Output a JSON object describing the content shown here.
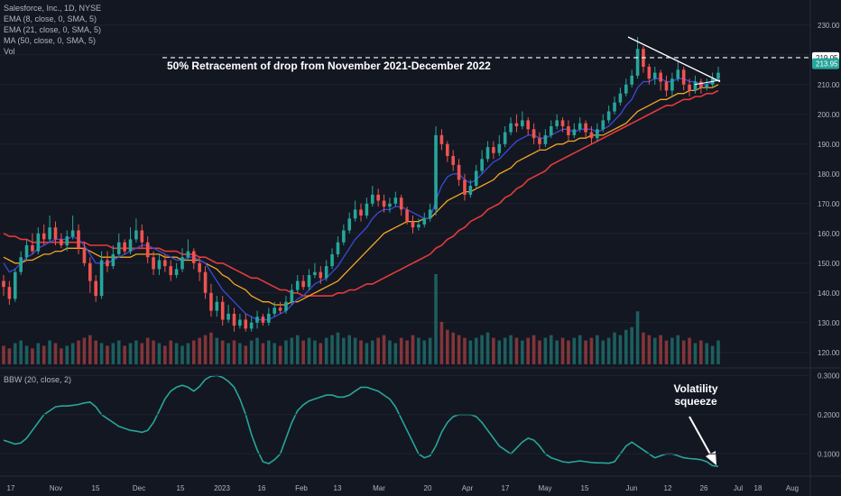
{
  "legend": {
    "symbol": "Salesforce, Inc., 1D, NYSE",
    "ema8": "EMA (8, close, 0, SMA, 5)",
    "ema21": "EMA (21, close, 0, SMA, 5)",
    "ma50": "MA (50, close, 0, SMA, 5)",
    "vol": "Vol",
    "bbw": "BBW (20, close, 2)"
  },
  "annotations": {
    "retracement": "50% Retracement of drop from November 2021-December 2022",
    "squeeze_line1": "Volatility",
    "squeeze_line2": "squeeze"
  },
  "colors": {
    "background": "#131722",
    "up": "#26a69a",
    "down": "#ef5350",
    "ema8": "#3b4bd8",
    "ema21": "#f5a623",
    "ma50": "#e53b3b",
    "bbw": "#26a69a",
    "grid": "#1e222d",
    "text": "#b2b5be"
  },
  "chart_data": {
    "type": "candlestick",
    "x_ticks": [
      "17",
      "Nov",
      "15",
      "Dec",
      "15",
      "2023",
      "16",
      "Feb",
      "13",
      "Mar",
      "20",
      "Apr",
      "17",
      "May",
      "15",
      "Jun",
      "12",
      "26",
      "Jul",
      "18",
      "Aug"
    ],
    "price_ticks": [
      120,
      130,
      140,
      150,
      160,
      170,
      180,
      190,
      200,
      210,
      220,
      230
    ],
    "price_range": [
      116,
      236
    ],
    "bbw_ticks": [
      "0.1000",
      "0.2000",
      "0.3000"
    ],
    "bbw_range": [
      0.05,
      0.31
    ],
    "current_price_label": "213.95",
    "retracement_level_label": "219.05",
    "retracement_level": 219.05,
    "candles": [
      [
        144,
        142,
        146,
        139
      ],
      [
        142,
        138,
        144,
        136
      ],
      [
        138,
        147,
        148,
        137
      ],
      [
        147,
        152,
        154,
        146
      ],
      [
        152,
        156,
        158,
        151
      ],
      [
        156,
        154,
        160,
        153
      ],
      [
        154,
        160,
        162,
        153
      ],
      [
        160,
        158,
        163,
        156
      ],
      [
        158,
        162,
        166,
        157
      ],
      [
        162,
        158,
        164,
        156
      ],
      [
        158,
        156,
        160,
        155
      ],
      [
        156,
        159,
        161,
        154
      ],
      [
        159,
        161,
        166,
        158
      ],
      [
        161,
        155,
        163,
        153
      ],
      [
        155,
        150,
        157,
        149
      ],
      [
        150,
        144,
        152,
        140
      ],
      [
        144,
        139,
        146,
        137
      ],
      [
        139,
        151,
        154,
        138
      ],
      [
        151,
        149,
        154,
        147
      ],
      [
        149,
        153,
        156,
        148
      ],
      [
        153,
        157,
        160,
        152
      ],
      [
        157,
        154,
        158,
        153
      ],
      [
        154,
        158,
        162,
        153
      ],
      [
        158,
        161,
        165,
        157
      ],
      [
        161,
        157,
        163,
        155
      ],
      [
        157,
        152,
        159,
        150
      ],
      [
        152,
        148,
        154,
        146
      ],
      [
        148,
        151,
        153,
        146
      ],
      [
        151,
        149,
        153,
        147
      ],
      [
        149,
        146,
        151,
        144
      ],
      [
        146,
        148,
        150,
        145
      ],
      [
        148,
        152,
        155,
        147
      ],
      [
        152,
        154,
        158,
        151
      ],
      [
        154,
        150,
        155,
        148
      ],
      [
        150,
        147,
        152,
        144
      ],
      [
        147,
        140,
        149,
        138
      ],
      [
        140,
        134,
        143,
        132
      ],
      [
        134,
        137,
        139,
        132
      ],
      [
        137,
        131,
        139,
        129
      ],
      [
        131,
        133,
        136,
        130
      ],
      [
        133,
        129,
        135,
        127
      ],
      [
        129,
        131,
        133,
        128
      ],
      [
        131,
        128,
        133,
        127
      ],
      [
        128,
        130,
        132,
        127
      ],
      [
        130,
        132,
        134,
        128
      ],
      [
        132,
        130,
        133,
        129
      ],
      [
        130,
        133,
        135,
        129
      ],
      [
        133,
        135,
        137,
        132
      ],
      [
        135,
        134,
        137,
        133
      ],
      [
        134,
        137,
        139,
        133
      ],
      [
        137,
        141,
        143,
        136
      ],
      [
        141,
        144,
        146,
        140
      ],
      [
        144,
        142,
        146,
        141
      ],
      [
        142,
        146,
        148,
        141
      ],
      [
        146,
        147,
        150,
        145
      ],
      [
        147,
        145,
        149,
        143
      ],
      [
        145,
        149,
        151,
        144
      ],
      [
        149,
        153,
        155,
        148
      ],
      [
        153,
        157,
        159,
        152
      ],
      [
        157,
        161,
        163,
        156
      ],
      [
        161,
        165,
        167,
        160
      ],
      [
        165,
        168,
        171,
        164
      ],
      [
        168,
        166,
        170,
        164
      ],
      [
        166,
        170,
        172,
        165
      ],
      [
        170,
        173,
        176,
        169
      ],
      [
        173,
        171,
        175,
        169
      ],
      [
        171,
        169,
        173,
        167
      ],
      [
        169,
        170,
        172,
        167
      ],
      [
        170,
        172,
        174,
        169
      ],
      [
        172,
        168,
        173,
        166
      ],
      [
        168,
        164,
        169,
        163
      ],
      [
        164,
        162,
        166,
        160
      ],
      [
        162,
        163,
        165,
        161
      ],
      [
        163,
        165,
        167,
        162
      ],
      [
        165,
        168,
        170,
        164
      ],
      [
        168,
        193,
        196,
        166
      ],
      [
        193,
        190,
        195,
        188
      ],
      [
        190,
        186,
        191,
        184
      ],
      [
        186,
        183,
        188,
        181
      ],
      [
        183,
        178,
        185,
        176
      ],
      [
        178,
        173,
        180,
        171
      ],
      [
        173,
        176,
        178,
        172
      ],
      [
        176,
        181,
        183,
        175
      ],
      [
        181,
        185,
        188,
        180
      ],
      [
        185,
        189,
        191,
        184
      ],
      [
        189,
        187,
        191,
        185
      ],
      [
        187,
        190,
        193,
        186
      ],
      [
        190,
        194,
        196,
        189
      ],
      [
        194,
        197,
        199,
        193
      ],
      [
        197,
        196,
        200,
        194
      ],
      [
        196,
        198,
        201,
        195
      ],
      [
        198,
        195,
        199,
        193
      ],
      [
        195,
        192,
        197,
        190
      ],
      [
        192,
        190,
        194,
        188
      ],
      [
        190,
        193,
        195,
        189
      ],
      [
        193,
        196,
        198,
        192
      ],
      [
        196,
        198,
        200,
        195
      ],
      [
        198,
        196,
        199,
        194
      ],
      [
        196,
        193,
        198,
        191
      ],
      [
        193,
        195,
        197,
        192
      ],
      [
        195,
        197,
        199,
        194
      ],
      [
        197,
        194,
        198,
        192
      ],
      [
        194,
        192,
        196,
        190
      ],
      [
        192,
        195,
        197,
        191
      ],
      [
        195,
        198,
        200,
        194
      ],
      [
        198,
        201,
        203,
        197
      ],
      [
        201,
        204,
        206,
        200
      ],
      [
        204,
        207,
        209,
        203
      ],
      [
        207,
        210,
        212,
        206
      ],
      [
        210,
        213,
        215,
        209
      ],
      [
        213,
        222,
        226,
        212
      ],
      [
        222,
        216,
        223,
        214
      ],
      [
        216,
        212,
        217,
        210
      ],
      [
        212,
        214,
        216,
        210
      ],
      [
        214,
        211,
        215,
        208
      ],
      [
        211,
        208,
        213,
        206
      ],
      [
        208,
        212,
        214,
        206
      ],
      [
        212,
        215,
        218,
        211
      ],
      [
        215,
        210,
        216,
        208
      ],
      [
        210,
        208,
        212,
        206
      ],
      [
        208,
        211,
        213,
        207
      ],
      [
        211,
        209,
        212,
        207
      ],
      [
        209,
        210,
        212,
        208
      ],
      [
        210,
        212,
        214,
        209
      ],
      [
        212,
        214,
        216,
        211
      ]
    ],
    "volume": [
      7,
      6,
      8,
      9,
      7,
      6,
      8,
      7,
      9,
      8,
      6,
      7,
      8,
      9,
      10,
      11,
      9,
      8,
      7,
      8,
      9,
      7,
      8,
      9,
      8,
      10,
      9,
      8,
      7,
      9,
      8,
      7,
      8,
      9,
      10,
      11,
      12,
      10,
      9,
      8,
      9,
      8,
      7,
      9,
      10,
      8,
      9,
      8,
      7,
      9,
      10,
      11,
      9,
      10,
      9,
      8,
      10,
      11,
      12,
      10,
      11,
      10,
      9,
      8,
      9,
      10,
      11,
      9,
      8,
      10,
      9,
      11,
      10,
      9,
      10,
      34,
      16,
      13,
      12,
      11,
      10,
      9,
      10,
      11,
      12,
      10,
      9,
      10,
      11,
      10,
      9,
      10,
      11,
      9,
      10,
      11,
      9,
      10,
      9,
      10,
      11,
      9,
      10,
      11,
      9,
      10,
      12,
      11,
      13,
      14,
      20,
      12,
      11,
      10,
      11,
      9,
      10,
      11,
      9,
      10,
      8,
      9,
      8,
      7,
      9
    ],
    "ema8": [
      150,
      147,
      148,
      150,
      152,
      153,
      155,
      156,
      157,
      158,
      158,
      158,
      159,
      158,
      156,
      153,
      150,
      150,
      150,
      151,
      152,
      153,
      154,
      155,
      156,
      156,
      155,
      154,
      153,
      152,
      151,
      151,
      152,
      152,
      151,
      150,
      147,
      144,
      141,
      139,
      137,
      135,
      133,
      132,
      131,
      131,
      131,
      132,
      133,
      134,
      136,
      138,
      139,
      141,
      143,
      144,
      145,
      147,
      149,
      152,
      155,
      158,
      160,
      162,
      165,
      167,
      168,
      168,
      169,
      169,
      168,
      167,
      166,
      165,
      165,
      171,
      176,
      179,
      180,
      180,
      178,
      177,
      178,
      180,
      182,
      184,
      185,
      187,
      189,
      191,
      192,
      193,
      193,
      192,
      192,
      193,
      194,
      195,
      195,
      194,
      195,
      195,
      195,
      194,
      195,
      196,
      198,
      200,
      203,
      205,
      209,
      211,
      211,
      212,
      212,
      211,
      211,
      212,
      212,
      211,
      211,
      210,
      210,
      211,
      212
    ],
    "ema21": [
      152,
      151,
      150,
      150,
      151,
      151,
      152,
      153,
      153,
      154,
      154,
      155,
      155,
      155,
      155,
      154,
      153,
      152,
      152,
      152,
      152,
      152,
      152,
      153,
      153,
      153,
      153,
      153,
      152,
      152,
      152,
      151,
      151,
      151,
      151,
      150,
      149,
      148,
      146,
      145,
      143,
      142,
      141,
      139,
      138,
      137,
      137,
      136,
      136,
      136,
      137,
      137,
      138,
      139,
      140,
      141,
      142,
      143,
      144,
      146,
      148,
      150,
      152,
      154,
      156,
      158,
      160,
      161,
      162,
      163,
      164,
      164,
      164,
      165,
      165,
      167,
      169,
      171,
      172,
      173,
      174,
      174,
      175,
      176,
      177,
      178,
      180,
      181,
      182,
      184,
      185,
      186,
      187,
      188,
      188,
      189,
      190,
      190,
      191,
      191,
      192,
      192,
      193,
      193,
      193,
      194,
      195,
      196,
      197,
      199,
      201,
      202,
      203,
      204,
      205,
      205,
      206,
      207,
      207,
      208,
      208,
      209,
      209,
      209,
      210
    ],
    "ma50": [
      160,
      159,
      159,
      158,
      158,
      157,
      157,
      157,
      157,
      157,
      157,
      157,
      157,
      157,
      157,
      156,
      156,
      156,
      156,
      155,
      155,
      155,
      155,
      155,
      155,
      155,
      155,
      155,
      154,
      154,
      154,
      153,
      153,
      153,
      152,
      152,
      151,
      150,
      150,
      149,
      148,
      147,
      146,
      145,
      145,
      144,
      143,
      142,
      141,
      141,
      140,
      140,
      139,
      139,
      139,
      139,
      139,
      139,
      140,
      140,
      141,
      141,
      142,
      143,
      143,
      144,
      145,
      146,
      147,
      148,
      149,
      150,
      151,
      152,
      153,
      155,
      156,
      158,
      159,
      161,
      162,
      164,
      165,
      166,
      168,
      169,
      170,
      172,
      173,
      175,
      176,
      178,
      179,
      180,
      181,
      183,
      184,
      185,
      186,
      187,
      188,
      189,
      190,
      191,
      192,
      193,
      194,
      195,
      196,
      197,
      198,
      199,
      200,
      201,
      202,
      203,
      203,
      204,
      205,
      205,
      206,
      206,
      207,
      207,
      208
    ],
    "bbw": [
      0.135,
      0.13,
      0.125,
      0.128,
      0.14,
      0.16,
      0.18,
      0.2,
      0.21,
      0.22,
      0.222,
      0.222,
      0.224,
      0.226,
      0.23,
      0.232,
      0.22,
      0.2,
      0.19,
      0.18,
      0.17,
      0.165,
      0.16,
      0.158,
      0.155,
      0.16,
      0.18,
      0.21,
      0.24,
      0.26,
      0.27,
      0.275,
      0.27,
      0.26,
      0.272,
      0.29,
      0.298,
      0.3,
      0.295,
      0.285,
      0.27,
      0.24,
      0.2,
      0.15,
      0.11,
      0.08,
      0.075,
      0.085,
      0.1,
      0.14,
      0.18,
      0.21,
      0.225,
      0.235,
      0.24,
      0.245,
      0.25,
      0.25,
      0.245,
      0.245,
      0.25,
      0.26,
      0.27,
      0.27,
      0.265,
      0.26,
      0.25,
      0.24,
      0.22,
      0.19,
      0.16,
      0.13,
      0.1,
      0.09,
      0.095,
      0.12,
      0.155,
      0.18,
      0.195,
      0.2,
      0.2,
      0.2,
      0.195,
      0.18,
      0.16,
      0.14,
      0.12,
      0.11,
      0.1,
      0.115,
      0.13,
      0.14,
      0.135,
      0.12,
      0.1,
      0.09,
      0.085,
      0.08,
      0.078,
      0.08,
      0.082,
      0.08,
      0.078,
      0.077,
      0.077,
      0.076,
      0.08,
      0.1,
      0.12,
      0.13,
      0.12,
      0.11,
      0.1,
      0.09,
      0.095,
      0.1,
      0.1,
      0.095,
      0.09,
      0.088,
      0.087,
      0.085,
      0.08,
      0.07,
      0.068
    ]
  }
}
